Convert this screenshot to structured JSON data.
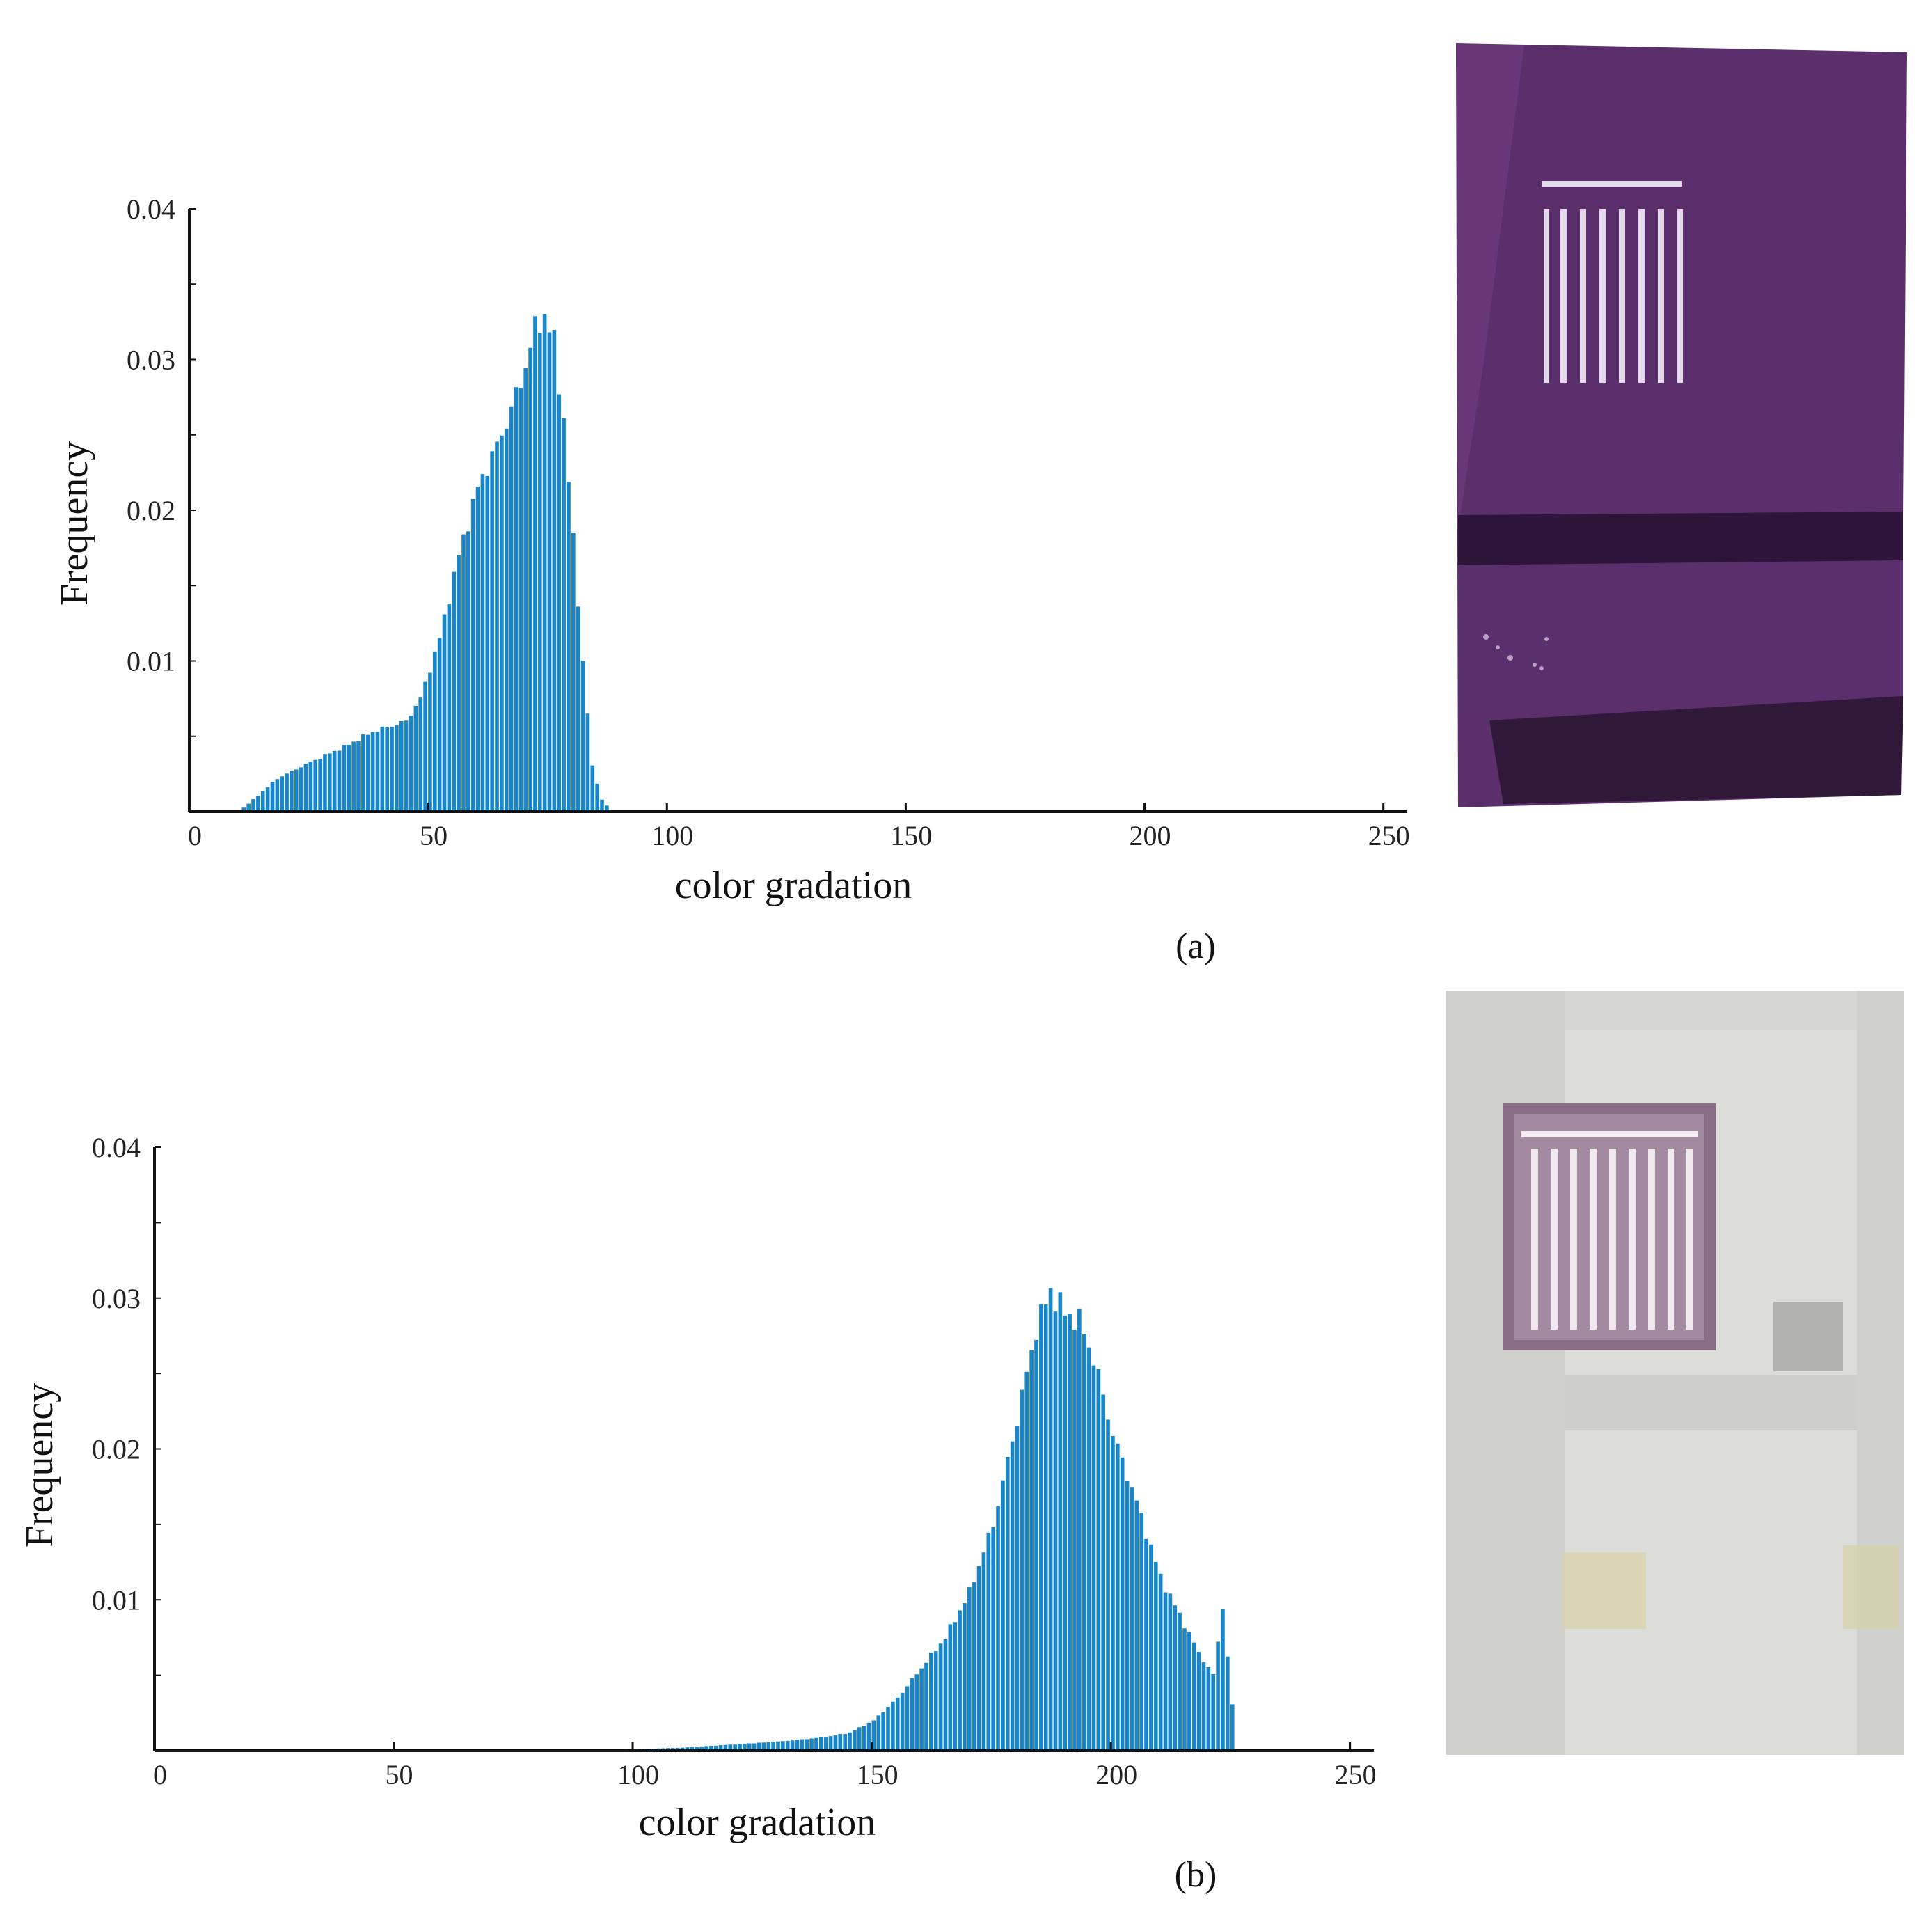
{
  "colors": {
    "bar": "#1a86c8",
    "axis": "#111111",
    "photo_a_bg": "#5a2f6b",
    "photo_b_bg": "#d4d4d0"
  },
  "chart_data": [
    {
      "type": "bar",
      "panel_label": "(a)",
      "xlabel": "color gradation",
      "ylabel": "Frequency",
      "xlim": [
        0,
        255
      ],
      "ylim": [
        0,
        0.04
      ],
      "xticks": [
        "0",
        "50",
        "100",
        "150",
        "200",
        "250"
      ],
      "yticks": [
        "0.01",
        "0.02",
        "0.03",
        "0.04"
      ],
      "key_points": [
        {
          "x": 10,
          "y": 0.0
        },
        {
          "x": 13,
          "y": 0.0008
        },
        {
          "x": 18,
          "y": 0.0022
        },
        {
          "x": 25,
          "y": 0.0033
        },
        {
          "x": 32,
          "y": 0.0043
        },
        {
          "x": 38,
          "y": 0.0053
        },
        {
          "x": 45,
          "y": 0.006
        },
        {
          "x": 48,
          "y": 0.0075
        },
        {
          "x": 52,
          "y": 0.0115
        },
        {
          "x": 56,
          "y": 0.017
        },
        {
          "x": 60,
          "y": 0.0215
        },
        {
          "x": 65,
          "y": 0.025
        },
        {
          "x": 69,
          "y": 0.0285
        },
        {
          "x": 72,
          "y": 0.032
        },
        {
          "x": 74,
          "y": 0.033
        },
        {
          "x": 76,
          "y": 0.031
        },
        {
          "x": 78,
          "y": 0.026
        },
        {
          "x": 80,
          "y": 0.018
        },
        {
          "x": 82,
          "y": 0.01
        },
        {
          "x": 84,
          "y": 0.003
        },
        {
          "x": 86,
          "y": 0.0008
        },
        {
          "x": 88,
          "y": 0.0
        }
      ]
    },
    {
      "type": "bar",
      "panel_label": "(b)",
      "xlabel": "color gradation",
      "ylabel": "Frequency",
      "xlim": [
        0,
        255
      ],
      "ylim": [
        0,
        0.04
      ],
      "xticks": [
        "0",
        "50",
        "100",
        "150",
        "200",
        "250"
      ],
      "yticks": [
        "0.01",
        "0.02",
        "0.03",
        "0.04"
      ],
      "key_points": [
        {
          "x": 80,
          "y": 0.0
        },
        {
          "x": 100,
          "y": 0.0001
        },
        {
          "x": 110,
          "y": 0.0002
        },
        {
          "x": 120,
          "y": 0.0004
        },
        {
          "x": 130,
          "y": 0.0006
        },
        {
          "x": 140,
          "y": 0.0009
        },
        {
          "x": 145,
          "y": 0.0012
        },
        {
          "x": 150,
          "y": 0.002
        },
        {
          "x": 155,
          "y": 0.0035
        },
        {
          "x": 160,
          "y": 0.0055
        },
        {
          "x": 165,
          "y": 0.0075
        },
        {
          "x": 170,
          "y": 0.0105
        },
        {
          "x": 175,
          "y": 0.015
        },
        {
          "x": 180,
          "y": 0.022
        },
        {
          "x": 184,
          "y": 0.028
        },
        {
          "x": 187,
          "y": 0.0305
        },
        {
          "x": 190,
          "y": 0.029
        },
        {
          "x": 193,
          "y": 0.0285
        },
        {
          "x": 196,
          "y": 0.026
        },
        {
          "x": 200,
          "y": 0.021
        },
        {
          "x": 205,
          "y": 0.0165
        },
        {
          "x": 210,
          "y": 0.0115
        },
        {
          "x": 214,
          "y": 0.009
        },
        {
          "x": 218,
          "y": 0.0065
        },
        {
          "x": 221,
          "y": 0.005
        },
        {
          "x": 223,
          "y": 0.0095
        },
        {
          "x": 225,
          "y": 0.003
        },
        {
          "x": 226,
          "y": 0.0
        }
      ]
    }
  ]
}
